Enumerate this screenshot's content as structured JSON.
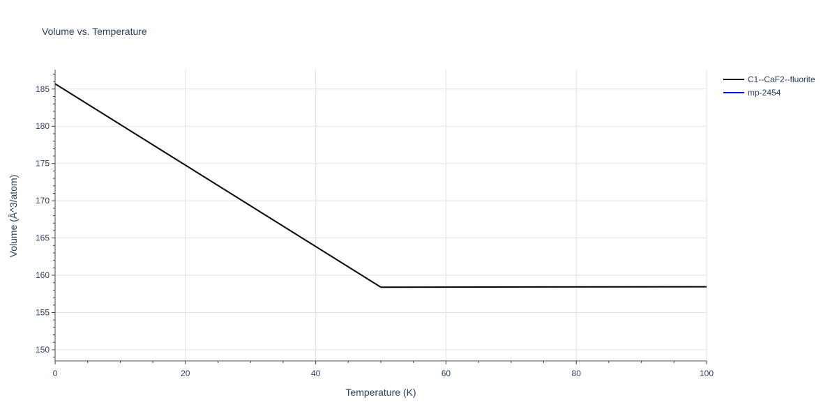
{
  "chart_data": {
    "type": "line",
    "title": "Volume vs. Temperature",
    "xlabel": "Temperature (K)",
    "ylabel": "Volume (Å^3/atom)",
    "xlim": [
      0,
      100
    ],
    "ylim": [
      148.5,
      187.6
    ],
    "x_ticks": [
      0,
      20,
      40,
      60,
      80,
      100
    ],
    "y_ticks": [
      150,
      155,
      160,
      165,
      170,
      175,
      180,
      185
    ],
    "grid": true,
    "legend_position": "top-right",
    "series": [
      {
        "name": "C1--CaF2--fluorite",
        "color": "#000000",
        "x": [
          0,
          50,
          100
        ],
        "y": [
          185.7,
          158.4,
          158.45
        ]
      },
      {
        "name": "mp-2454",
        "color": "#0000ff",
        "x": [],
        "y": []
      }
    ]
  }
}
